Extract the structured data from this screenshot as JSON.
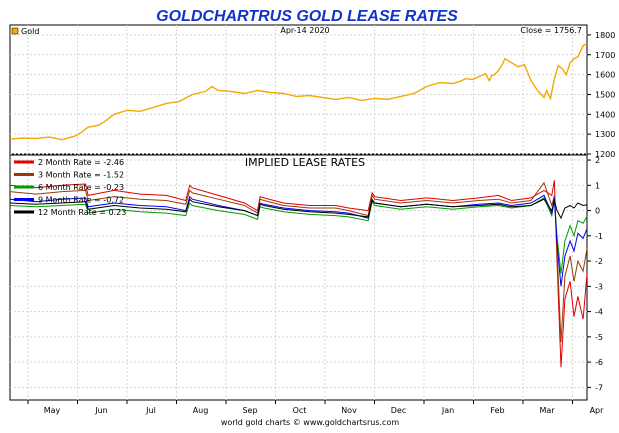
{
  "chart_data": [
    {
      "type": "line",
      "title": "GOLDCHARTRUS GOLD LEASE RATES",
      "date_label": "Apr-14  2020",
      "close_label": "Close = 1756.7",
      "series_name": "Gold",
      "color": "#f5a800",
      "ylim": [
        1200,
        1850
      ],
      "yticks": [
        1200,
        1300,
        1400,
        1500,
        1600,
        1700,
        1800
      ],
      "x": [
        0,
        10,
        20,
        30,
        40,
        50,
        55,
        60,
        68,
        72,
        80,
        90,
        100,
        110,
        120,
        130,
        140,
        150,
        155,
        160,
        170,
        180,
        190,
        200,
        210,
        220,
        230,
        240,
        250,
        260,
        270,
        280,
        290,
        300,
        310,
        320,
        330,
        340,
        345,
        350,
        355,
        360,
        365,
        368,
        370,
        372,
        375,
        378,
        380,
        385,
        390,
        395,
        400,
        405,
        410,
        412,
        415,
        418,
        421,
        424,
        427,
        430,
        433,
        436,
        440,
        443
      ],
      "values": [
        1275,
        1280,
        1278,
        1285,
        1272,
        1290,
        1310,
        1335,
        1345,
        1360,
        1400,
        1420,
        1415,
        1435,
        1455,
        1465,
        1500,
        1515,
        1540,
        1520,
        1515,
        1505,
        1520,
        1510,
        1505,
        1490,
        1495,
        1485,
        1475,
        1485,
        1470,
        1480,
        1475,
        1490,
        1505,
        1540,
        1560,
        1555,
        1565,
        1580,
        1575,
        1590,
        1605,
        1570,
        1595,
        1600,
        1620,
        1650,
        1680,
        1660,
        1640,
        1650,
        1570,
        1520,
        1485,
        1520,
        1480,
        1580,
        1645,
        1630,
        1600,
        1660,
        1680,
        1690,
        1745,
        1756.7
      ]
    },
    {
      "type": "line",
      "title": "IMPLIED LEASE RATES",
      "ylim": [
        -7.5,
        2.2
      ],
      "yticks": [
        2,
        1,
        0,
        -1,
        -2,
        -3,
        -4,
        -5,
        -6,
        -7
      ],
      "x_categories": [
        "May",
        "Jun",
        "Jul",
        "Aug",
        "Sep",
        "Oct",
        "Nov",
        "Dec",
        "Jan",
        "Feb",
        "Mar",
        "Apr"
      ],
      "footer": "world gold charts © www.goldchartsrus.com",
      "series": [
        {
          "name": "2 Month Rate",
          "legend": "2 Month Rate  = -2.46",
          "color": "#e00000",
          "x": [
            0,
            20,
            40,
            58,
            60,
            80,
            100,
            120,
            135,
            138,
            140,
            160,
            180,
            190,
            192,
            195,
            210,
            230,
            250,
            260,
            275,
            278,
            280,
            300,
            320,
            340,
            360,
            375,
            385,
            400,
            410,
            416,
            418,
            420,
            423,
            426,
            430,
            433,
            436,
            440,
            443
          ],
          "values": [
            1.0,
            0.9,
            1.0,
            1.05,
            0.6,
            0.8,
            0.65,
            0.6,
            0.4,
            1.0,
            0.9,
            0.6,
            0.3,
            0.0,
            0.55,
            0.5,
            0.3,
            0.2,
            0.2,
            0.1,
            0.0,
            0.7,
            0.55,
            0.4,
            0.5,
            0.4,
            0.5,
            0.6,
            0.4,
            0.5,
            0.8,
            0.6,
            1.2,
            -2.0,
            -6.2,
            -3.5,
            -2.8,
            -4.2,
            -3.4,
            -4.3,
            -2.5
          ]
        },
        {
          "name": "3 Month Rate",
          "legend": "3 Month Rate  = -1.52",
          "color": "#9b3a06",
          "x": [
            0,
            20,
            40,
            58,
            60,
            80,
            100,
            120,
            135,
            138,
            140,
            160,
            180,
            190,
            192,
            195,
            210,
            230,
            250,
            260,
            275,
            278,
            280,
            300,
            320,
            340,
            360,
            375,
            385,
            400,
            410,
            416,
            418,
            420,
            423,
            426,
            430,
            433,
            436,
            440,
            443
          ],
          "values": [
            0.75,
            0.65,
            0.75,
            0.8,
            0.4,
            0.55,
            0.45,
            0.4,
            0.25,
            0.8,
            0.7,
            0.45,
            0.2,
            -0.1,
            0.45,
            0.4,
            0.2,
            0.1,
            0.1,
            0.0,
            -0.2,
            0.6,
            0.45,
            0.3,
            0.4,
            0.3,
            0.4,
            0.45,
            0.3,
            0.4,
            1.1,
            0.2,
            0.6,
            -1.5,
            -5.2,
            -2.6,
            -1.8,
            -2.8,
            -2.0,
            -2.4,
            -1.5
          ]
        },
        {
          "name": "6 Month Rate",
          "legend": "6 Month Rate  = -0.23",
          "color": "#009a00",
          "x": [
            0,
            20,
            40,
            58,
            60,
            80,
            100,
            120,
            135,
            138,
            140,
            160,
            180,
            190,
            192,
            195,
            210,
            230,
            250,
            260,
            275,
            278,
            280,
            300,
            320,
            340,
            360,
            375,
            385,
            400,
            410,
            416,
            418,
            420,
            423,
            426,
            430,
            433,
            436,
            440,
            443
          ],
          "values": [
            0.2,
            0.15,
            0.2,
            0.25,
            -0.1,
            0.05,
            -0.05,
            -0.1,
            -0.2,
            0.3,
            0.2,
            0.0,
            -0.15,
            -0.35,
            0.15,
            0.1,
            -0.05,
            -0.15,
            -0.2,
            -0.25,
            -0.4,
            0.35,
            0.2,
            0.05,
            0.15,
            0.05,
            0.15,
            0.2,
            0.1,
            0.2,
            0.5,
            -0.2,
            0.4,
            -1.0,
            -2.5,
            -1.2,
            -0.6,
            -1.0,
            -0.4,
            -0.5,
            -0.23
          ]
        },
        {
          "name": "9 Month Rate",
          "legend": "9 Month Rate  = -0.72",
          "color": "#0000ee",
          "x": [
            0,
            20,
            40,
            58,
            60,
            80,
            100,
            120,
            135,
            138,
            140,
            160,
            180,
            190,
            192,
            195,
            210,
            230,
            250,
            260,
            275,
            278,
            280,
            300,
            320,
            340,
            360,
            375,
            385,
            400,
            410,
            416,
            418,
            420,
            423,
            426,
            430,
            433,
            436,
            440,
            443
          ],
          "values": [
            0.45,
            0.35,
            0.45,
            0.5,
            0.15,
            0.3,
            0.2,
            0.15,
            0.0,
            0.55,
            0.45,
            0.2,
            0.0,
            -0.2,
            0.3,
            0.25,
            0.1,
            0.0,
            -0.05,
            -0.1,
            -0.3,
            0.45,
            0.3,
            0.15,
            0.25,
            0.15,
            0.25,
            0.3,
            0.2,
            0.3,
            0.6,
            -0.1,
            0.5,
            -1.3,
            -3.0,
            -1.8,
            -1.2,
            -1.6,
            -0.9,
            -1.1,
            -0.72
          ]
        },
        {
          "name": "12 Month Rate",
          "legend": "12 Month Rate  = 0.23",
          "color": "#000000",
          "x": [
            0,
            20,
            40,
            58,
            60,
            80,
            100,
            120,
            135,
            138,
            140,
            160,
            180,
            190,
            192,
            195,
            210,
            230,
            250,
            260,
            275,
            278,
            280,
            300,
            320,
            340,
            360,
            375,
            385,
            400,
            410,
            416,
            418,
            420,
            423,
            426,
            430,
            433,
            436,
            440,
            443
          ],
          "values": [
            0.3,
            0.25,
            0.3,
            0.35,
            0.05,
            0.2,
            0.1,
            0.05,
            -0.05,
            0.45,
            0.35,
            0.15,
            0.0,
            -0.2,
            0.25,
            0.2,
            0.05,
            -0.05,
            -0.1,
            -0.15,
            -0.25,
            0.4,
            0.3,
            0.15,
            0.25,
            0.15,
            0.2,
            0.25,
            0.15,
            0.2,
            0.45,
            0.0,
            0.4,
            0.0,
            -0.3,
            0.1,
            0.2,
            0.1,
            0.3,
            0.2,
            0.23
          ]
        }
      ]
    }
  ]
}
